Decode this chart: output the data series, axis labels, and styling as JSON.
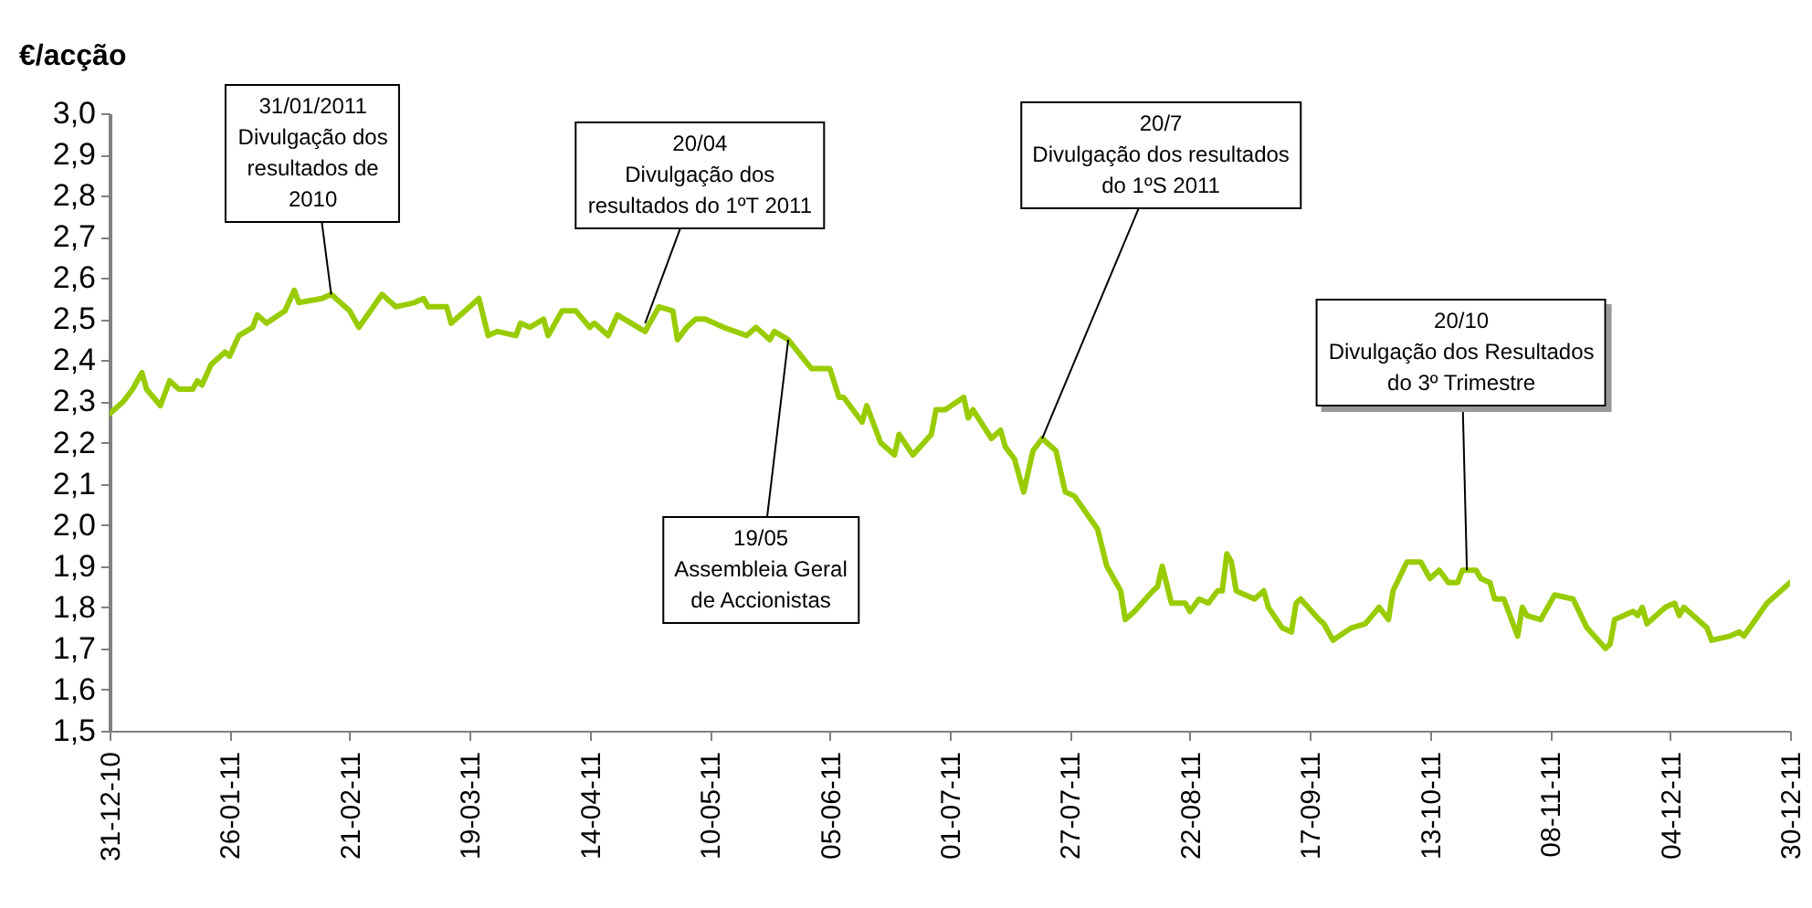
{
  "chart_data": {
    "type": "line",
    "ylabel": "€/acção",
    "x": [
      "2010-12-31",
      "2011-01-03",
      "2011-01-05",
      "2011-01-07",
      "2011-01-08",
      "2011-01-11",
      "2011-01-13",
      "2011-01-15",
      "2011-01-18",
      "2011-01-19",
      "2011-01-20",
      "2011-01-22",
      "2011-01-25",
      "2011-01-26",
      "2011-01-28",
      "2011-01-31",
      "2011-02-01",
      "2011-02-03",
      "2011-02-07",
      "2011-02-09",
      "2011-02-10",
      "2011-02-15",
      "2011-02-17",
      "2011-02-21",
      "2011-02-23",
      "2011-02-28",
      "2011-03-03",
      "2011-03-07",
      "2011-03-09",
      "2011-03-10",
      "2011-03-14",
      "2011-03-15",
      "2011-03-21",
      "2011-03-23",
      "2011-03-25",
      "2011-03-29",
      "2011-03-30",
      "2011-04-01",
      "2011-04-04",
      "2011-04-05",
      "2011-04-08",
      "2011-04-11",
      "2011-04-14",
      "2011-04-15",
      "2011-04-18",
      "2011-04-20",
      "2011-04-26",
      "2011-04-29",
      "2011-05-02",
      "2011-05-03",
      "2011-05-05",
      "2011-05-07",
      "2011-05-09",
      "2011-05-13",
      "2011-05-18",
      "2011-05-20",
      "2011-05-23",
      "2011-05-24",
      "2011-05-27",
      "2011-06-01",
      "2011-06-05",
      "2011-06-07",
      "2011-06-08",
      "2011-06-12",
      "2011-06-13",
      "2011-06-16",
      "2011-06-19",
      "2011-06-20",
      "2011-06-23",
      "2011-06-27",
      "2011-06-28",
      "2011-06-30",
      "2011-07-04",
      "2011-07-05",
      "2011-07-06",
      "2011-07-10",
      "2011-07-12",
      "2011-07-13",
      "2011-07-15",
      "2011-07-17",
      "2011-07-19",
      "2011-07-21",
      "2011-07-24",
      "2011-07-26",
      "2011-07-28",
      "2011-08-02",
      "2011-08-04",
      "2011-08-07",
      "2011-08-08",
      "2011-08-10",
      "2011-08-14",
      "2011-08-15",
      "2011-08-16",
      "2011-08-18",
      "2011-08-21",
      "2011-08-22",
      "2011-08-24",
      "2011-08-26",
      "2011-08-28",
      "2011-08-29",
      "2011-08-30",
      "2011-08-31",
      "2011-09-01",
      "2011-09-05",
      "2011-09-07",
      "2011-09-08",
      "2011-09-11",
      "2011-09-13",
      "2011-09-14",
      "2011-09-15",
      "2011-09-19",
      "2011-09-20",
      "2011-09-22",
      "2011-09-26",
      "2011-09-29",
      "2011-10-02",
      "2011-10-04",
      "2011-10-05",
      "2011-10-08",
      "2011-10-11",
      "2011-10-13",
      "2011-10-15",
      "2011-10-17",
      "2011-10-19",
      "2011-10-20",
      "2011-10-23",
      "2011-10-24",
      "2011-10-26",
      "2011-10-27",
      "2011-10-29",
      "2011-11-01",
      "2011-11-02",
      "2011-11-03",
      "2011-11-06",
      "2011-11-09",
      "2011-11-13",
      "2011-11-16",
      "2011-11-20",
      "2011-11-21",
      "2011-11-22",
      "2011-11-26",
      "2011-11-27",
      "2011-11-28",
      "2011-11-29",
      "2011-12-03",
      "2011-12-05",
      "2011-12-06",
      "2011-12-07",
      "2011-12-12",
      "2011-12-13",
      "2011-12-17",
      "2011-12-19",
      "2011-12-20",
      "2011-12-25",
      "2011-12-27",
      "2011-12-28",
      "2011-12-30"
    ],
    "series": [
      {
        "color": "#99cc00",
        "values": [
          2.27,
          2.3,
          2.33,
          2.37,
          2.33,
          2.29,
          2.35,
          2.33,
          2.33,
          2.35,
          2.34,
          2.39,
          2.42,
          2.41,
          2.46,
          2.48,
          2.51,
          2.49,
          2.52,
          2.57,
          2.54,
          2.55,
          2.56,
          2.52,
          2.48,
          2.56,
          2.53,
          2.54,
          2.55,
          2.53,
          2.53,
          2.49,
          2.55,
          2.46,
          2.47,
          2.46,
          2.49,
          2.48,
          2.5,
          2.46,
          2.52,
          2.52,
          2.48,
          2.49,
          2.46,
          2.51,
          2.47,
          2.53,
          2.52,
          2.45,
          2.48,
          2.5,
          2.5,
          2.48,
          2.46,
          2.48,
          2.45,
          2.47,
          2.45,
          2.38,
          2.38,
          2.31,
          2.31,
          2.25,
          2.29,
          2.2,
          2.17,
          2.22,
          2.17,
          2.22,
          2.28,
          2.28,
          2.31,
          2.26,
          2.28,
          2.21,
          2.23,
          2.19,
          2.16,
          2.08,
          2.18,
          2.21,
          2.18,
          2.08,
          2.07,
          1.99,
          1.9,
          1.84,
          1.77,
          1.79,
          1.84,
          1.85,
          1.9,
          1.81,
          1.81,
          1.79,
          1.82,
          1.81,
          1.84,
          1.84,
          1.93,
          1.91,
          1.84,
          1.82,
          1.84,
          1.8,
          1.75,
          1.74,
          1.81,
          1.82,
          1.77,
          1.76,
          1.72,
          1.75,
          1.76,
          1.8,
          1.77,
          1.84,
          1.91,
          1.91,
          1.87,
          1.89,
          1.86,
          1.86,
          1.89,
          1.89,
          1.87,
          1.86,
          1.82,
          1.82,
          1.73,
          1.8,
          1.78,
          1.77,
          1.83,
          1.82,
          1.75,
          1.7,
          1.71,
          1.77,
          1.79,
          1.78,
          1.8,
          1.76,
          1.8,
          1.81,
          1.78,
          1.8,
          1.75,
          1.72,
          1.73,
          1.74,
          1.73,
          1.81,
          1.83,
          1.84,
          1.86
        ]
      }
    ],
    "xlim": [
      "2010-12-31",
      "2011-12-30"
    ],
    "xticks": [
      {
        "value": "2010-12-31",
        "label": "31-12-10"
      },
      {
        "value": "2011-01-26",
        "label": "26-01-11"
      },
      {
        "value": "2011-02-21",
        "label": "21-02-11"
      },
      {
        "value": "2011-03-19",
        "label": "19-03-11"
      },
      {
        "value": "2011-04-14",
        "label": "14-04-11"
      },
      {
        "value": "2011-05-10",
        "label": "10-05-11"
      },
      {
        "value": "2011-06-05",
        "label": "05-06-11"
      },
      {
        "value": "2011-07-01",
        "label": "01-07-11"
      },
      {
        "value": "2011-07-27",
        "label": "27-07-11"
      },
      {
        "value": "2011-08-22",
        "label": "22-08-11"
      },
      {
        "value": "2011-09-17",
        "label": "17-09-11"
      },
      {
        "value": "2011-10-13",
        "label": "13-10-11"
      },
      {
        "value": "2011-11-08",
        "label": "08-11-11"
      },
      {
        "value": "2011-12-04",
        "label": "04-12-11"
      },
      {
        "value": "2011-12-30",
        "label": "30-12-11"
      }
    ],
    "ylim": [
      1.5,
      3.0
    ],
    "yticks": [
      {
        "value": 1.5,
        "label": "1,5"
      },
      {
        "value": 1.6,
        "label": "1,6"
      },
      {
        "value": 1.7,
        "label": "1,7"
      },
      {
        "value": 1.8,
        "label": "1,8"
      },
      {
        "value": 1.9,
        "label": "1,9"
      },
      {
        "value": 2.0,
        "label": "2,0"
      },
      {
        "value": 2.1,
        "label": "2,1"
      },
      {
        "value": 2.2,
        "label": "2,2"
      },
      {
        "value": 2.3,
        "label": "2,3"
      },
      {
        "value": 2.4,
        "label": "2,4"
      },
      {
        "value": 2.5,
        "label": "2,5"
      },
      {
        "value": 2.6,
        "label": "2,6"
      },
      {
        "value": 2.7,
        "label": "2,7"
      },
      {
        "value": 2.8,
        "label": "2,8"
      },
      {
        "value": 2.9,
        "label": "2,9"
      },
      {
        "value": 3.0,
        "label": "3,0"
      }
    ],
    "grid": false,
    "annotations": [
      {
        "text": "31/01/2011\nDivulgação dos\nresultados de\n2010",
        "x": "2011-02-17",
        "y": 2.56
      },
      {
        "text": "20/04\nDivulgação dos\nresultados do 1ºT 2011",
        "x": "2011-04-26",
        "y": 2.49
      },
      {
        "text": "19/05\nAssembleia Geral\nde Accionistas",
        "x": "2011-05-27",
        "y": 2.45
      },
      {
        "text": "20/7\nDivulgação dos resultados\ndo 1ºS 2011",
        "x": "2011-07-21",
        "y": 2.21
      },
      {
        "text": "20/10\nDivulgação dos Resultados\ndo 3º Trimestre",
        "x": "2011-10-21",
        "y": 1.89
      }
    ]
  }
}
